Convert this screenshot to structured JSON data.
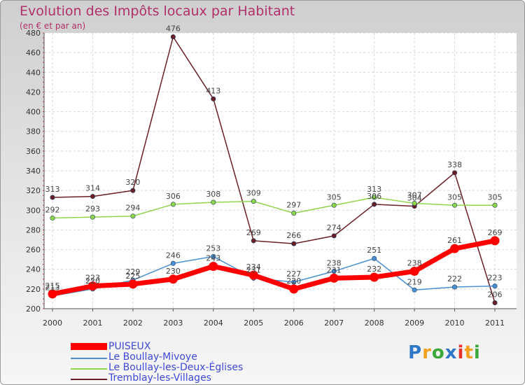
{
  "chart_data": {
    "type": "line",
    "title": "Evolution des Impôts locaux par Habitant",
    "subtitle": "(en € et par an)",
    "xlabel": "",
    "ylabel": "",
    "x": [
      "2000",
      "2001",
      "2002",
      "2003",
      "2004",
      "2005",
      "2006",
      "2007",
      "2008",
      "2009",
      "2010",
      "2011"
    ],
    "ylim": [
      200,
      480
    ],
    "yticks": [
      200,
      220,
      240,
      260,
      280,
      300,
      320,
      340,
      360,
      380,
      400,
      420,
      440,
      460,
      480
    ],
    "grid": true,
    "legend_position": "bottom-left",
    "series": [
      {
        "name": "PUISEUX",
        "color": "#ff0000",
        "values": [
          215,
          223,
          225,
          230,
          243,
          234,
          220,
          231,
          232,
          238,
          261,
          269
        ]
      },
      {
        "name": "Le Boullay-Mivoye",
        "color": "#4a90d0",
        "values": [
          213,
          220,
          229,
          246,
          253,
          231,
          227,
          238,
          251,
          219,
          222,
          223
        ]
      },
      {
        "name": "Le Boullay-les-Deux-Églises",
        "color": "#8fd64a",
        "values": [
          292,
          293,
          294,
          306,
          308,
          309,
          297,
          305,
          313,
          307,
          305,
          305
        ]
      },
      {
        "name": "Tremblay-les-Villages",
        "color": "#6b1f24",
        "values": [
          313,
          314,
          320,
          476,
          413,
          269,
          266,
          274,
          306,
          304,
          338,
          206
        ]
      }
    ]
  },
  "logo": {
    "letters": [
      "P",
      "r",
      "o",
      "x",
      "i",
      "t",
      "i"
    ],
    "colors": [
      "#2f78c8",
      "#f0a020",
      "#3aa83a",
      "#2f78c8",
      "#e8302a",
      "#f0a020",
      "#3aa83a"
    ]
  }
}
